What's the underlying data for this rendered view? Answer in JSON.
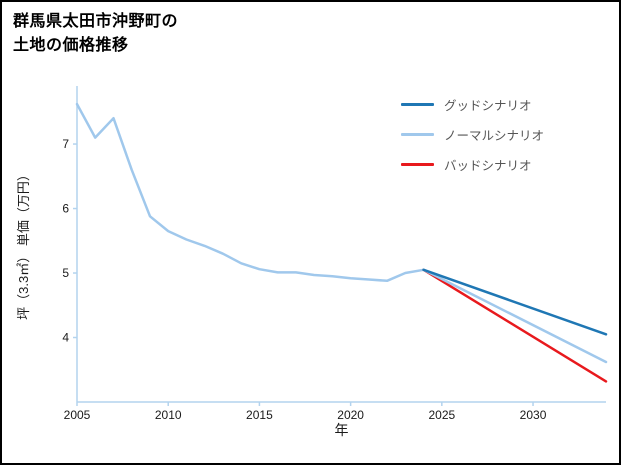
{
  "title": {
    "line1": "群馬県太田市沖野町の",
    "line2": "土地の価格推移"
  },
  "chart_data": {
    "type": "line",
    "title": "群馬県太田市沖野町の土地の価格推移",
    "xlabel": "年",
    "ylabel": "坪（3.3㎡） 単価（万円）",
    "xlim": [
      2005,
      2034
    ],
    "ylim": [
      3.0,
      7.9
    ],
    "xticks": [
      2005,
      2010,
      2015,
      2020,
      2025,
      2030
    ],
    "yticks": [
      4,
      5,
      6,
      7
    ],
    "grid": false,
    "legend_position": "top-right",
    "axis_color": "#b3d3ee",
    "tick_color": "#1a1a1a",
    "series": [
      {
        "id": "history",
        "label": "",
        "color": "#a0c8ec",
        "width": 2.5,
        "x": [
          2005,
          2006,
          2007,
          2008,
          2009,
          2010,
          2011,
          2012,
          2013,
          2014,
          2015,
          2016,
          2017,
          2018,
          2019,
          2020,
          2021,
          2022,
          2023,
          2024
        ],
        "values": [
          7.62,
          7.1,
          7.4,
          6.6,
          5.88,
          5.65,
          5.52,
          5.42,
          5.3,
          5.15,
          5.06,
          5.01,
          5.01,
          4.97,
          4.95,
          4.92,
          4.9,
          4.88,
          5.0,
          5.05
        ]
      },
      {
        "id": "good",
        "label": "グッドシナリオ",
        "color": "#1f77b4",
        "width": 2.5,
        "x": [
          2024,
          2034
        ],
        "values": [
          5.05,
          4.05
        ]
      },
      {
        "id": "normal",
        "label": "ノーマルシナリオ",
        "color": "#a0c8ec",
        "width": 2.5,
        "x": [
          2024,
          2034
        ],
        "values": [
          5.05,
          3.62
        ]
      },
      {
        "id": "bad",
        "label": "バッドシナリオ",
        "color": "#e8191d",
        "width": 2.5,
        "x": [
          2024,
          2034
        ],
        "values": [
          5.05,
          3.32
        ]
      }
    ]
  }
}
